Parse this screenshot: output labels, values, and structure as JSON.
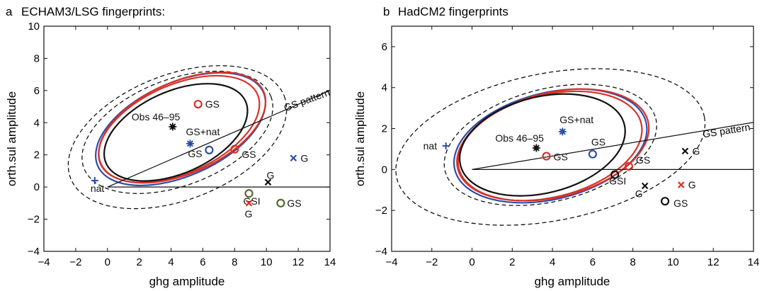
{
  "colors": {
    "black": "#111111",
    "red": "#d83228",
    "blue": "#2b4fa8",
    "olive": "#556b2f"
  },
  "chart_data": [
    {
      "type": "scatter",
      "panel_letter": "a",
      "title": "ECHAM3/LSG fingerprints:",
      "xlabel": "ghg amplitude",
      "ylabel": "orth.sul amplitude",
      "xlim": [
        -4,
        14
      ],
      "ylim": [
        -4,
        10
      ],
      "xticks": [
        -4,
        -2,
        0,
        2,
        4,
        6,
        8,
        10,
        12,
        14
      ],
      "yticks": [
        -4,
        -2,
        0,
        2,
        4,
        6,
        8,
        10
      ],
      "grid": false,
      "ellipses": [
        {
          "color": "black",
          "style": "dashed",
          "cx": 4.4,
          "cy": 3.1,
          "rx": 7.2,
          "ry": 3.9,
          "angle": 21
        },
        {
          "color": "black",
          "style": "dashed",
          "cx": 4.4,
          "cy": 3.4,
          "rx": 6.3,
          "ry": 3.3,
          "angle": 21
        },
        {
          "color": "blue",
          "style": "solid",
          "cx": 4.6,
          "cy": 3.6,
          "rx": 5.7,
          "ry": 2.9,
          "angle": 24
        },
        {
          "color": "red",
          "style": "solid",
          "cx": 4.7,
          "cy": 3.7,
          "rx": 5.6,
          "ry": 2.85,
          "angle": 24
        },
        {
          "color": "red",
          "style": "solid",
          "cx": 4.5,
          "cy": 3.6,
          "rx": 5.4,
          "ry": 2.75,
          "angle": 24
        },
        {
          "color": "black",
          "style": "solid",
          "cx": 4.3,
          "cy": 3.4,
          "rx": 4.8,
          "ry": 2.55,
          "angle": 24
        }
      ],
      "lines": [
        {
          "color": "black",
          "from": [
            0,
            0
          ],
          "to": [
            14,
            6
          ]
        },
        {
          "color": "black",
          "from": [
            0,
            0
          ],
          "to": [
            14,
            0
          ]
        }
      ],
      "points": [
        {
          "label": "Obs 46–95",
          "x": 4.1,
          "y": 3.75,
          "marker": "star",
          "color": "black"
        },
        {
          "label": "GS+nat",
          "x": 5.2,
          "y": 2.7,
          "marker": "star",
          "color": "blue"
        },
        {
          "label": "GS",
          "x": 5.7,
          "y": 5.15,
          "marker": "circle",
          "color": "red"
        },
        {
          "label": "GS",
          "x": 6.4,
          "y": 2.3,
          "marker": "circle",
          "color": "blue"
        },
        {
          "label": "GS",
          "x": 8.0,
          "y": 2.35,
          "marker": "circle",
          "color": "red"
        },
        {
          "label": "nat",
          "x": -0.8,
          "y": 0.4,
          "marker": "plus",
          "color": "blue"
        },
        {
          "label": "G",
          "x": 11.7,
          "y": 1.8,
          "marker": "cross",
          "color": "blue"
        },
        {
          "label": "G",
          "x": 10.1,
          "y": 0.3,
          "marker": "cross",
          "color": "black"
        },
        {
          "label": "GSI",
          "x": 8.9,
          "y": -0.4,
          "marker": "circle",
          "color": "olive"
        },
        {
          "label": "G",
          "x": 8.9,
          "y": -1.0,
          "marker": "cross",
          "color": "red"
        },
        {
          "label": "GS",
          "x": 10.9,
          "y": -1.0,
          "marker": "circle",
          "color": "olive"
        }
      ],
      "annotations": [
        {
          "text": "GS pattern",
          "x": 11.2,
          "y": 4.7,
          "rotate": -20
        }
      ]
    },
    {
      "type": "scatter",
      "panel_letter": "b",
      "title": "HadCM2 fingerprints",
      "xlabel": "ghg amplitude",
      "ylabel": "orth.sul amplitude",
      "xlim": [
        -4,
        14
      ],
      "ylim": [
        -4,
        7
      ],
      "xticks": [
        -4,
        -2,
        0,
        2,
        4,
        6,
        8,
        10,
        12,
        14
      ],
      "yticks": [
        -4,
        -2,
        0,
        2,
        4,
        6
      ],
      "grid": false,
      "ellipses": [
        {
          "color": "black",
          "style": "dashed",
          "cx": 3.9,
          "cy": 1.1,
          "rx": 7.8,
          "ry": 3.6,
          "angle": 11
        },
        {
          "color": "black",
          "style": "dashed",
          "cx": 3.9,
          "cy": 1.2,
          "rx": 5.4,
          "ry": 2.75,
          "angle": 14
        },
        {
          "color": "blue",
          "style": "solid",
          "cx": 3.9,
          "cy": 1.15,
          "rx": 4.9,
          "ry": 2.6,
          "angle": 14
        },
        {
          "color": "red",
          "style": "solid",
          "cx": 4.05,
          "cy": 1.2,
          "rx": 4.85,
          "ry": 2.55,
          "angle": 14
        },
        {
          "color": "red",
          "style": "solid",
          "cx": 3.85,
          "cy": 1.15,
          "rx": 4.7,
          "ry": 2.5,
          "angle": 14
        },
        {
          "color": "black",
          "style": "solid",
          "cx": 3.5,
          "cy": 1.2,
          "rx": 4.2,
          "ry": 2.35,
          "angle": 14
        }
      ],
      "lines": [
        {
          "color": "black",
          "from": [
            0,
            0
          ],
          "to": [
            14,
            2.3
          ]
        },
        {
          "color": "black",
          "from": [
            0,
            0
          ],
          "to": [
            14,
            0
          ]
        }
      ],
      "points": [
        {
          "label": "Obs 46–95",
          "x": 3.2,
          "y": 1.05,
          "marker": "star",
          "color": "black"
        },
        {
          "label": "GS+nat",
          "x": 4.5,
          "y": 1.85,
          "marker": "star",
          "color": "blue"
        },
        {
          "label": "nat",
          "x": -1.3,
          "y": 1.15,
          "marker": "plus",
          "color": "blue"
        },
        {
          "label": "GS",
          "x": 3.7,
          "y": 0.65,
          "marker": "circle",
          "color": "red"
        },
        {
          "label": "GS",
          "x": 6.0,
          "y": 0.75,
          "marker": "circle",
          "color": "blue"
        },
        {
          "label": "GS",
          "x": 7.8,
          "y": 0.15,
          "marker": "circle",
          "color": "red"
        },
        {
          "label": "GSI",
          "x": 7.1,
          "y": -0.25,
          "marker": "circle",
          "color": "black"
        },
        {
          "label": "G",
          "x": 10.6,
          "y": 0.9,
          "marker": "cross",
          "color": "black"
        },
        {
          "label": "G",
          "x": 8.6,
          "y": -0.8,
          "marker": "cross",
          "color": "black"
        },
        {
          "label": "G",
          "x": 10.4,
          "y": -0.75,
          "marker": "cross",
          "color": "red"
        },
        {
          "label": "GS",
          "x": 9.6,
          "y": -1.55,
          "marker": "circle",
          "color": "black"
        }
      ],
      "annotations": [
        {
          "text": "GS pattern",
          "x": 11.5,
          "y": 1.55,
          "rotate": -9
        }
      ]
    }
  ]
}
